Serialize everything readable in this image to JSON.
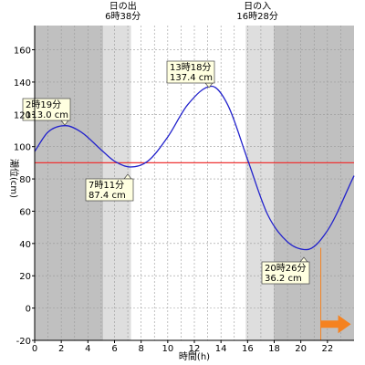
{
  "chart_data": {
    "type": "line",
    "xlabel": "時間(h)",
    "ylabel": "潮位(cm)",
    "xlim": [
      0,
      24
    ],
    "ylim": [
      -20,
      175
    ],
    "x_ticks": [
      0,
      2,
      4,
      6,
      8,
      10,
      12,
      14,
      16,
      18,
      20,
      22
    ],
    "y_ticks": [
      -20,
      0,
      20,
      40,
      60,
      80,
      100,
      120,
      140,
      160
    ],
    "reference_line": {
      "value": 90,
      "color": "#ee3333"
    },
    "sunrise": {
      "title": "日の出",
      "time_label": "6時38分",
      "hour": 6.633
    },
    "sunset": {
      "title": "日の入",
      "time_label": "16時28分",
      "hour": 16.467
    },
    "current_time_hour": 21.5,
    "series": [
      {
        "color": "#2222cc",
        "x": [
          0,
          1,
          2.317,
          3.5,
          5,
          6,
          7.183,
          8.5,
          10,
          11.5,
          13.3,
          14.5,
          16,
          17.5,
          19,
          20.433,
          22,
          24
        ],
        "y": [
          97,
          109,
          113.0,
          109,
          98,
          91,
          87.4,
          91,
          106,
          126,
          137.4,
          126,
          92,
          58,
          41,
          36.2,
          48,
          82
        ]
      }
    ],
    "annotations": [
      {
        "time_label": "2時19分",
        "value_label": "113.0 cm",
        "hour": 2.317,
        "value": 113.0,
        "kind": "high"
      },
      {
        "time_label": "7時11分",
        "value_label": "87.4 cm",
        "hour": 7.183,
        "value": 87.4,
        "kind": "low"
      },
      {
        "time_label": "13時18分",
        "value_label": "137.4 cm",
        "hour": 13.3,
        "value": 137.4,
        "kind": "high"
      },
      {
        "time_label": "20時26分",
        "value_label": "36.2 cm",
        "hour": 20.433,
        "value": 36.2,
        "kind": "low"
      }
    ],
    "colors": {
      "night": "#c0c0c0",
      "twilight": "#dedede",
      "day": "#ffffff",
      "tide_line": "#2222cc",
      "reference": "#ee3333",
      "current_marker": "#f58220",
      "label_box": "#ffffe0"
    }
  }
}
